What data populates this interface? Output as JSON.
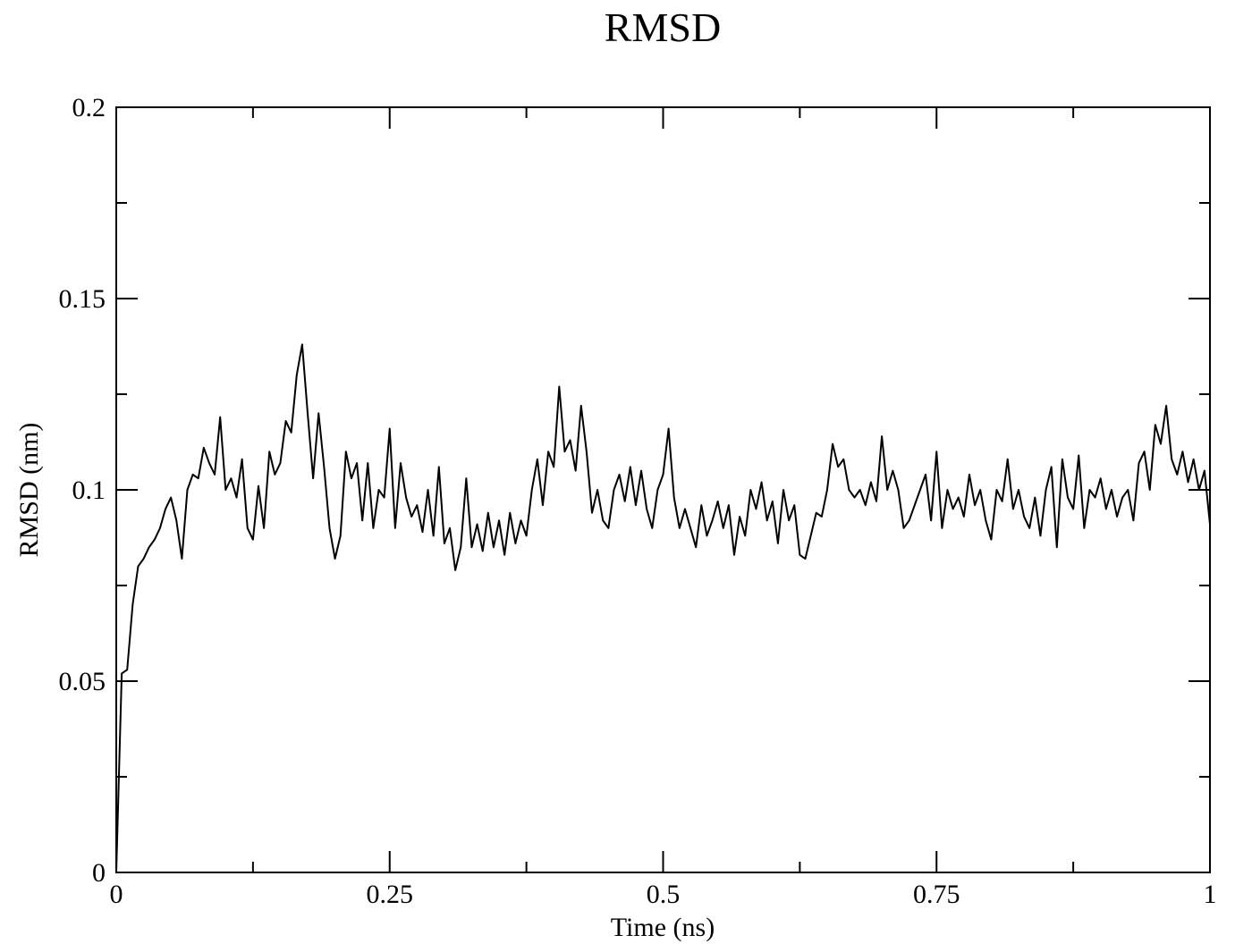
{
  "chart_data": {
    "type": "line",
    "title": "RMSD",
    "x_label": "Time (ns)",
    "y_label": "RMSD (nm)",
    "x": [
      0,
      0.005,
      0.01,
      0.015,
      0.02,
      0.025,
      0.03,
      0.035,
      0.04,
      0.045,
      0.05,
      0.055,
      0.06,
      0.065,
      0.07,
      0.075,
      0.08,
      0.085,
      0.09,
      0.095,
      0.1,
      0.105,
      0.11,
      0.115,
      0.12,
      0.125,
      0.13,
      0.135,
      0.14,
      0.145,
      0.15,
      0.155,
      0.16,
      0.165,
      0.17,
      0.175,
      0.18,
      0.185,
      0.19,
      0.195,
      0.2,
      0.205,
      0.21,
      0.215,
      0.22,
      0.225,
      0.23,
      0.235,
      0.24,
      0.245,
      0.25,
      0.255,
      0.26,
      0.265,
      0.27,
      0.275,
      0.28,
      0.285,
      0.29,
      0.295,
      0.3,
      0.305,
      0.31,
      0.315,
      0.32,
      0.325,
      0.33,
      0.335,
      0.34,
      0.345,
      0.35,
      0.355,
      0.36,
      0.365,
      0.37,
      0.375,
      0.38,
      0.385,
      0.39,
      0.395,
      0.4,
      0.405,
      0.41,
      0.415,
      0.42,
      0.425,
      0.43,
      0.435,
      0.44,
      0.445,
      0.45,
      0.455,
      0.46,
      0.465,
      0.47,
      0.475,
      0.48,
      0.485,
      0.49,
      0.495,
      0.5,
      0.505,
      0.51,
      0.515,
      0.52,
      0.525,
      0.53,
      0.535,
      0.54,
      0.545,
      0.55,
      0.555,
      0.56,
      0.565,
      0.57,
      0.575,
      0.58,
      0.585,
      0.59,
      0.595,
      0.6,
      0.605,
      0.61,
      0.615,
      0.62,
      0.625,
      0.63,
      0.635,
      0.64,
      0.645,
      0.65,
      0.655,
      0.66,
      0.665,
      0.67,
      0.675,
      0.68,
      0.685,
      0.69,
      0.695,
      0.7,
      0.705,
      0.71,
      0.715,
      0.72,
      0.725,
      0.73,
      0.735,
      0.74,
      0.745,
      0.75,
      0.755,
      0.76,
      0.765,
      0.77,
      0.775,
      0.78,
      0.785,
      0.79,
      0.795,
      0.8,
      0.805,
      0.81,
      0.815,
      0.82,
      0.825,
      0.83,
      0.835,
      0.84,
      0.845,
      0.85,
      0.855,
      0.86,
      0.865,
      0.87,
      0.875,
      0.88,
      0.885,
      0.89,
      0.895,
      0.9,
      0.905,
      0.91,
      0.915,
      0.92,
      0.925,
      0.93,
      0.935,
      0.94,
      0.945,
      0.95,
      0.955,
      0.96,
      0.965,
      0.97,
      0.975,
      0.98,
      0.985,
      0.99,
      0.995,
      1
    ],
    "series": [
      {
        "color": "#000000",
        "values": [
          0,
          0.052,
          0.053,
          0.07,
          0.08,
          0.082,
          0.085,
          0.087,
          0.09,
          0.095,
          0.098,
          0.092,
          0.082,
          0.1,
          0.104,
          0.103,
          0.111,
          0.107,
          0.104,
          0.119,
          0.1,
          0.103,
          0.098,
          0.108,
          0.09,
          0.087,
          0.101,
          0.09,
          0.11,
          0.104,
          0.107,
          0.118,
          0.115,
          0.13,
          0.138,
          0.12,
          0.103,
          0.12,
          0.106,
          0.09,
          0.082,
          0.088,
          0.11,
          0.103,
          0.107,
          0.092,
          0.107,
          0.09,
          0.1,
          0.098,
          0.116,
          0.09,
          0.107,
          0.098,
          0.093,
          0.096,
          0.089,
          0.1,
          0.088,
          0.106,
          0.086,
          0.09,
          0.079,
          0.085,
          0.103,
          0.085,
          0.091,
          0.084,
          0.094,
          0.085,
          0.092,
          0.083,
          0.094,
          0.086,
          0.092,
          0.088,
          0.1,
          0.108,
          0.096,
          0.11,
          0.106,
          0.127,
          0.11,
          0.113,
          0.105,
          0.122,
          0.11,
          0.094,
          0.1,
          0.092,
          0.09,
          0.1,
          0.104,
          0.097,
          0.106,
          0.096,
          0.105,
          0.095,
          0.09,
          0.1,
          0.104,
          0.116,
          0.098,
          0.09,
          0.095,
          0.09,
          0.085,
          0.096,
          0.088,
          0.092,
          0.097,
          0.09,
          0.096,
          0.083,
          0.093,
          0.088,
          0.1,
          0.095,
          0.102,
          0.092,
          0.097,
          0.086,
          0.1,
          0.092,
          0.096,
          0.083,
          0.082,
          0.088,
          0.094,
          0.093,
          0.1,
          0.112,
          0.106,
          0.108,
          0.1,
          0.098,
          0.1,
          0.096,
          0.102,
          0.097,
          0.114,
          0.1,
          0.105,
          0.1,
          0.09,
          0.092,
          0.096,
          0.1,
          0.104,
          0.092,
          0.11,
          0.09,
          0.1,
          0.095,
          0.098,
          0.093,
          0.104,
          0.096,
          0.1,
          0.092,
          0.087,
          0.1,
          0.097,
          0.108,
          0.095,
          0.1,
          0.093,
          0.09,
          0.098,
          0.088,
          0.1,
          0.106,
          0.085,
          0.108,
          0.098,
          0.095,
          0.109,
          0.09,
          0.1,
          0.098,
          0.103,
          0.095,
          0.1,
          0.093,
          0.098,
          0.1,
          0.092,
          0.107,
          0.11,
          0.1,
          0.117,
          0.112,
          0.122,
          0.108,
          0.104,
          0.11,
          0.102,
          0.108,
          0.1,
          0.105,
          0.091
        ]
      }
    ],
    "xlim": [
      0,
      1
    ],
    "xticks": [
      0,
      0.25,
      0.5,
      0.75,
      1
    ],
    "ylim": [
      0,
      0.2
    ],
    "yticks": [
      0,
      0.05,
      0.1,
      0.15,
      0.2
    ],
    "grid": false
  }
}
